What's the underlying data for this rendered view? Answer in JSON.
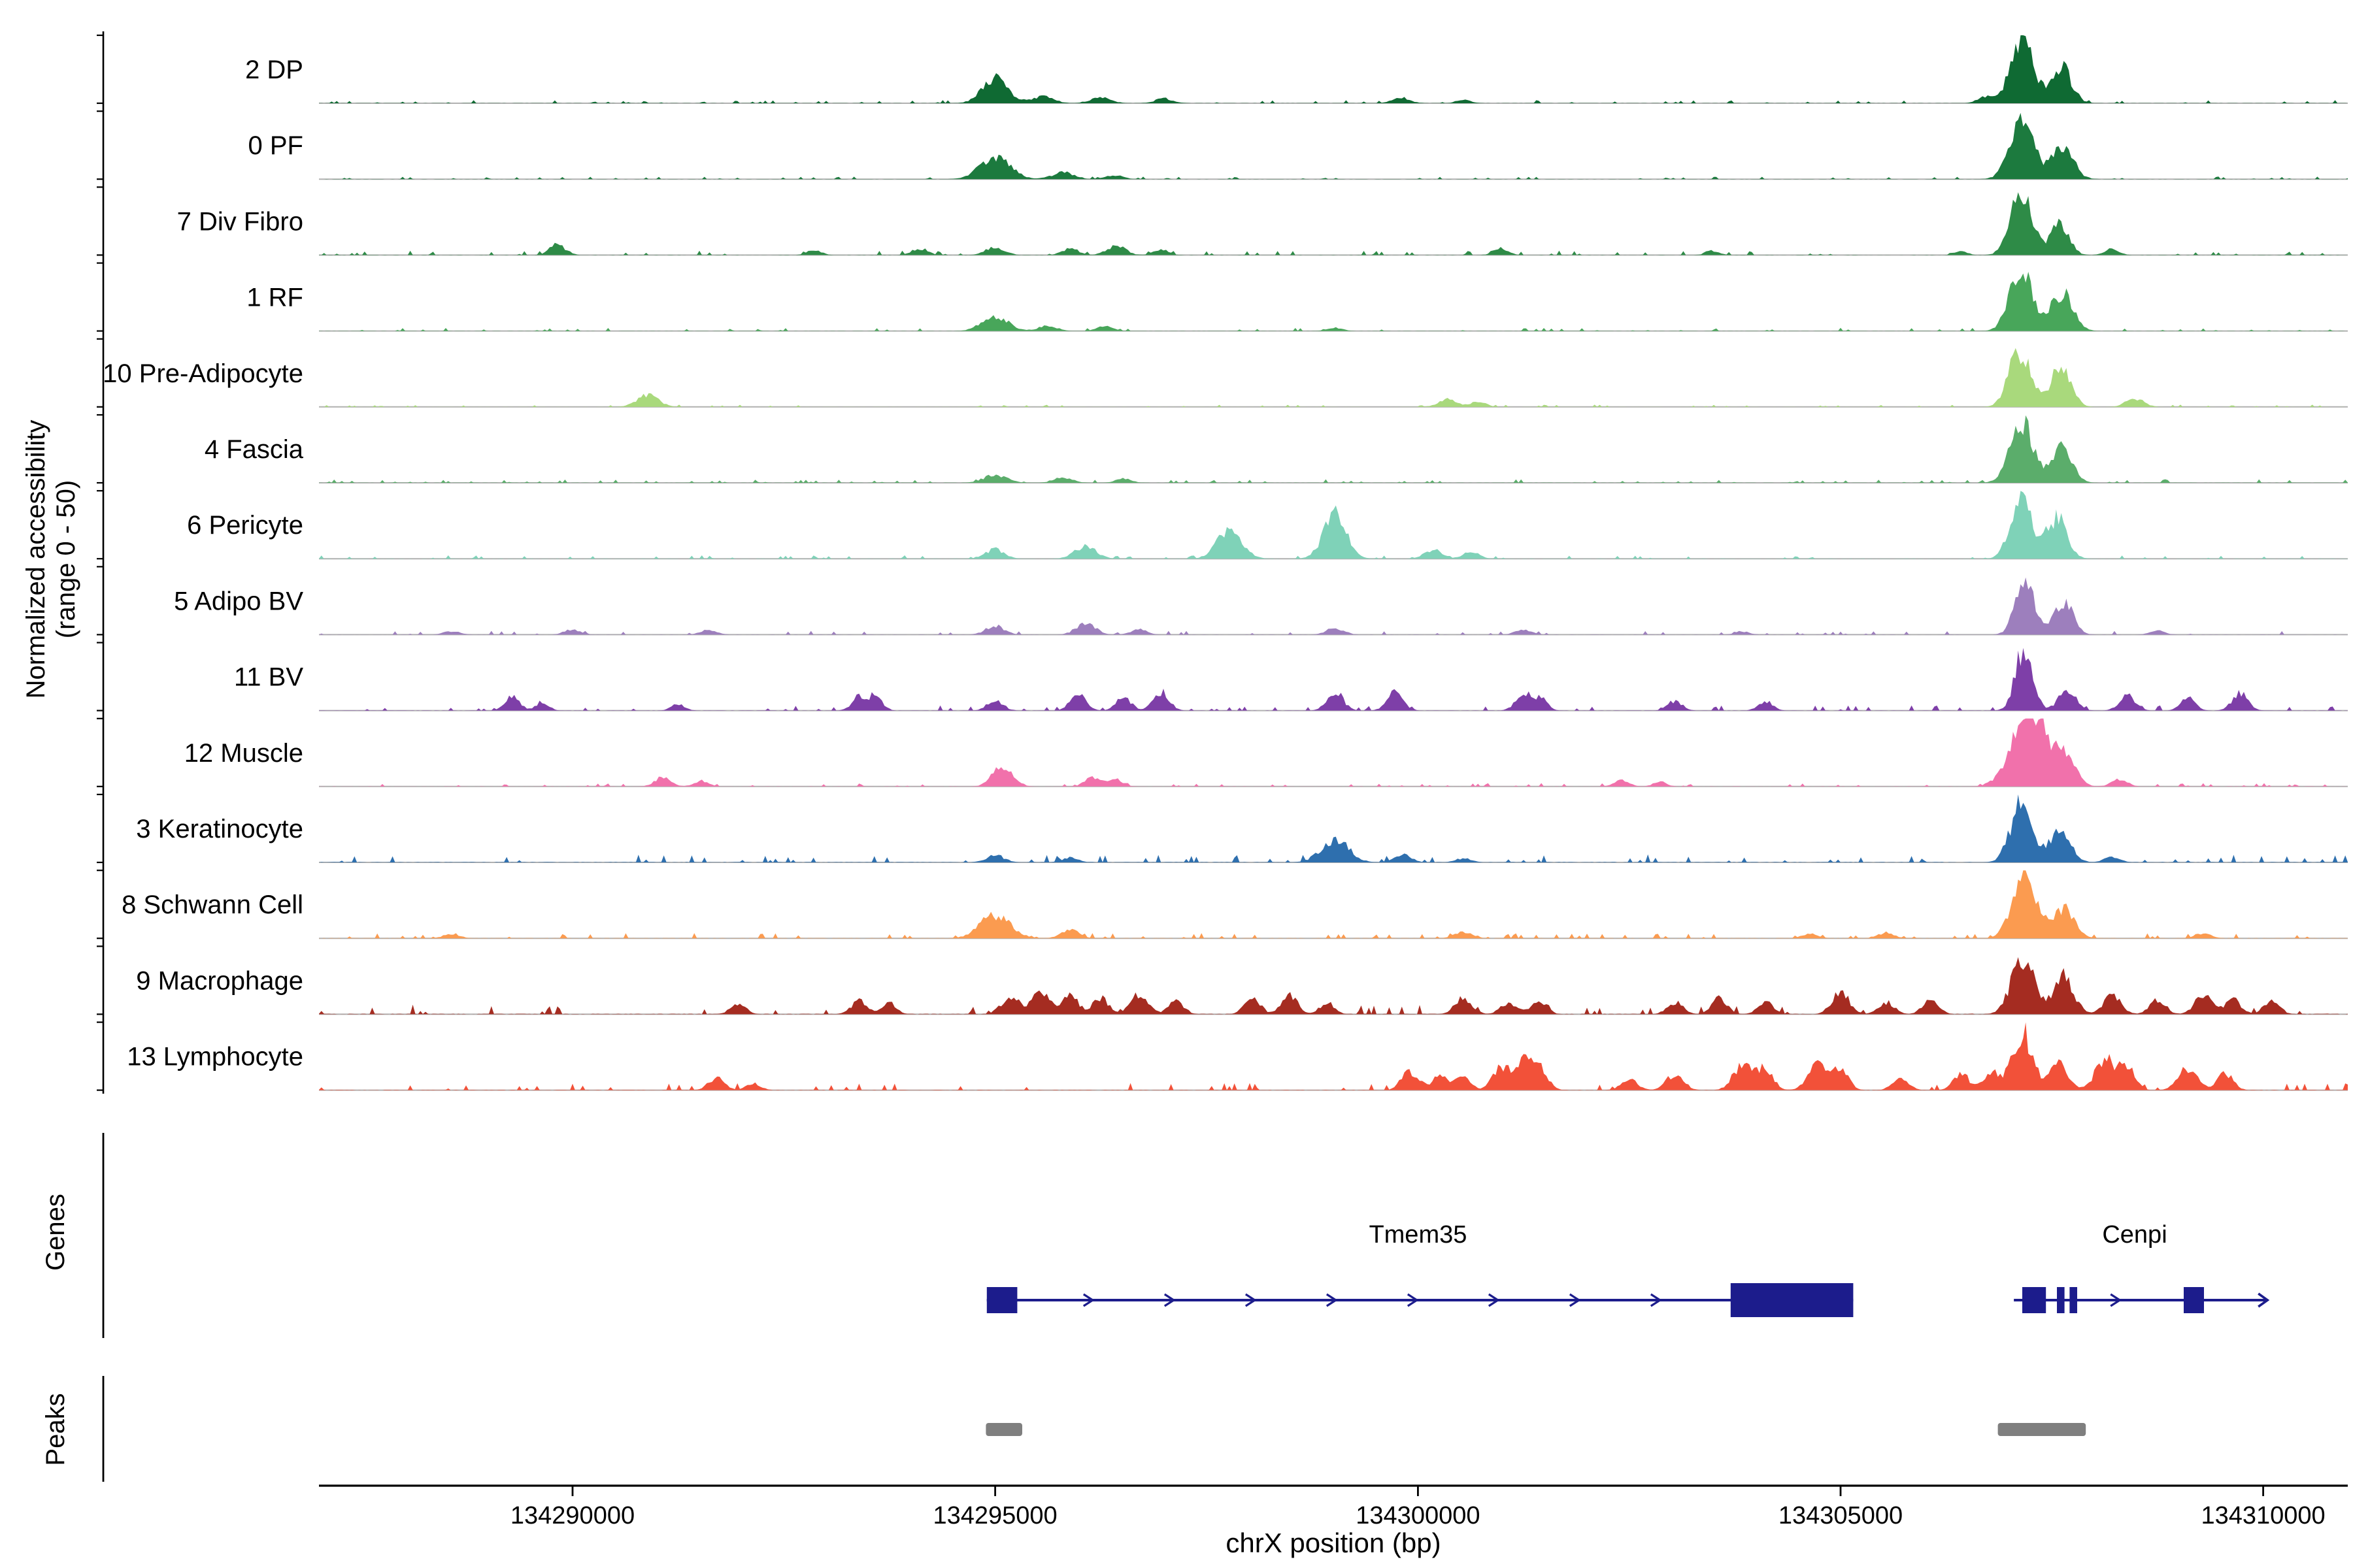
{
  "figure": {
    "labels": {
      "y_axis": "Normalized accessibility\n(range 0 - 50)",
      "genes": "Genes",
      "peaks": "Peaks",
      "x_axis": "chrX position (bp)"
    }
  },
  "chart_data": {
    "type": "area",
    "title": "",
    "x_axis": {
      "label": "chrX position (bp)",
      "chrom": "chrX",
      "start": 134287000,
      "end": 134311000,
      "ticks": [
        {
          "bp": 134290000,
          "label": "134290000"
        },
        {
          "bp": 134295000,
          "label": "134295000"
        },
        {
          "bp": 134300000,
          "label": "134300000"
        },
        {
          "bp": 134305000,
          "label": "134305000"
        },
        {
          "bp": 134310000,
          "label": "134310000"
        }
      ]
    },
    "y_axis": {
      "label": "Normalized accessibility",
      "range_note": "(range 0 - 50)",
      "per_track_range": [
        0,
        50
      ]
    },
    "tracks": [
      {
        "label": "2 DP",
        "color": "#0f6a33",
        "noise": 0.7,
        "peaks": [
          [
            134295000,
            0.38,
            350
          ],
          [
            134295560,
            0.1,
            300
          ],
          [
            134296250,
            0.08,
            280
          ],
          [
            134297000,
            0.07,
            250
          ],
          [
            134299800,
            0.08,
            250
          ],
          [
            134300540,
            0.05,
            200
          ],
          [
            134306700,
            0.1,
            200
          ],
          [
            134307140,
            0.93,
            320
          ],
          [
            134307610,
            0.55,
            280
          ]
        ]
      },
      {
        "label": "0 PF",
        "color": "#1c7a3e",
        "noise": 0.6,
        "peaks": [
          [
            134295000,
            0.32,
            420
          ],
          [
            134295800,
            0.1,
            300
          ],
          [
            134296400,
            0.06,
            250
          ],
          [
            134307140,
            0.9,
            320
          ],
          [
            134307620,
            0.5,
            300
          ]
        ]
      },
      {
        "label": "7 Div Fibro",
        "color": "#2e8b47",
        "noise": 1.0,
        "peaks": [
          [
            134289820,
            0.16,
            220
          ],
          [
            134292860,
            0.07,
            200
          ],
          [
            134294110,
            0.1,
            220
          ],
          [
            134295000,
            0.12,
            260
          ],
          [
            134295890,
            0.1,
            220
          ],
          [
            134296430,
            0.14,
            260
          ],
          [
            134296960,
            0.08,
            200
          ],
          [
            134300980,
            0.1,
            200
          ],
          [
            134303480,
            0.07,
            180
          ],
          [
            134306430,
            0.06,
            160
          ],
          [
            134307140,
            0.9,
            300
          ],
          [
            134307590,
            0.45,
            260
          ],
          [
            134308210,
            0.1,
            200
          ]
        ]
      },
      {
        "label": "1 RF",
        "color": "#48a65a",
        "noise": 0.7,
        "peaks": [
          [
            134295000,
            0.22,
            360
          ],
          [
            134295620,
            0.08,
            250
          ],
          [
            134296300,
            0.07,
            220
          ],
          [
            134299020,
            0.05,
            200
          ],
          [
            134307140,
            0.9,
            320
          ],
          [
            134307620,
            0.55,
            300
          ]
        ]
      },
      {
        "label": "10 Pre-Adipocyte",
        "color": "#a9d97c",
        "noise": 0.5,
        "peaks": [
          [
            134290890,
            0.17,
            300
          ],
          [
            134300360,
            0.12,
            260
          ],
          [
            134300720,
            0.08,
            200
          ],
          [
            134307120,
            0.84,
            300
          ],
          [
            134307600,
            0.6,
            280
          ],
          [
            134308480,
            0.13,
            240
          ]
        ]
      },
      {
        "label": "4 Fascia",
        "color": "#5bad6b",
        "noise": 0.8,
        "peaks": [
          [
            134295000,
            0.12,
            320
          ],
          [
            134295800,
            0.08,
            260
          ],
          [
            134296520,
            0.06,
            220
          ],
          [
            134307140,
            0.9,
            320
          ],
          [
            134307620,
            0.55,
            280
          ]
        ]
      },
      {
        "label": "6 Pericyte",
        "color": "#7fd2b8",
        "noise": 0.8,
        "peaks": [
          [
            134295000,
            0.14,
            260
          ],
          [
            134296070,
            0.18,
            300
          ],
          [
            134297770,
            0.45,
            340
          ],
          [
            134299020,
            0.65,
            320
          ],
          [
            134300180,
            0.14,
            240
          ],
          [
            134300630,
            0.1,
            220
          ],
          [
            134307140,
            0.88,
            300
          ],
          [
            134307560,
            0.6,
            280
          ]
        ]
      },
      {
        "label": "5 Adipo BV",
        "color": "#9d7fbd",
        "noise": 0.9,
        "peaks": [
          [
            134288570,
            0.05,
            220
          ],
          [
            134290000,
            0.08,
            220
          ],
          [
            134291610,
            0.07,
            220
          ],
          [
            134295000,
            0.13,
            260
          ],
          [
            134296070,
            0.18,
            260
          ],
          [
            134296700,
            0.08,
            220
          ],
          [
            134299020,
            0.1,
            240
          ],
          [
            134301250,
            0.08,
            220
          ],
          [
            134303840,
            0.05,
            200
          ],
          [
            134307180,
            0.84,
            260
          ],
          [
            134307640,
            0.5,
            260
          ],
          [
            134308750,
            0.06,
            200
          ]
        ]
      },
      {
        "label": "11 BV",
        "color": "#7e3fa8",
        "noise": 1.2,
        "peaks": [
          [
            134289290,
            0.2,
            200
          ],
          [
            134289640,
            0.13,
            180
          ],
          [
            134291250,
            0.1,
            180
          ],
          [
            134293390,
            0.2,
            200
          ],
          [
            134293590,
            0.22,
            180
          ],
          [
            134295000,
            0.15,
            220
          ],
          [
            134295980,
            0.25,
            220
          ],
          [
            134296520,
            0.2,
            200
          ],
          [
            134296960,
            0.28,
            220
          ],
          [
            134299020,
            0.28,
            220
          ],
          [
            134299730,
            0.28,
            220
          ],
          [
            134301250,
            0.24,
            220
          ],
          [
            134301450,
            0.18,
            180
          ],
          [
            134303040,
            0.14,
            200
          ],
          [
            134304110,
            0.14,
            200
          ],
          [
            134307170,
            0.95,
            240
          ],
          [
            134307680,
            0.3,
            240
          ],
          [
            134308390,
            0.22,
            220
          ],
          [
            134309110,
            0.18,
            200
          ],
          [
            134309730,
            0.26,
            220
          ]
        ]
      },
      {
        "label": "12 Muscle",
        "color": "#f171ab",
        "noise": 0.8,
        "peaks": [
          [
            134291070,
            0.14,
            220
          ],
          [
            134291520,
            0.09,
            200
          ],
          [
            134295090,
            0.3,
            280
          ],
          [
            134296160,
            0.14,
            220
          ],
          [
            134296430,
            0.1,
            200
          ],
          [
            134302410,
            0.09,
            200
          ],
          [
            134302860,
            0.07,
            180
          ],
          [
            134307160,
            0.78,
            420
          ],
          [
            134307320,
            0.82,
            260
          ],
          [
            134307640,
            0.5,
            300
          ],
          [
            134308300,
            0.1,
            220
          ]
        ]
      },
      {
        "label": "3 Keratinocyte",
        "color": "#2e6fae",
        "noise": 1.8,
        "peaks": [
          [
            134295000,
            0.1,
            260
          ],
          [
            134295890,
            0.07,
            220
          ],
          [
            134299020,
            0.35,
            380
          ],
          [
            134299820,
            0.12,
            240
          ],
          [
            134300540,
            0.06,
            220
          ],
          [
            134307140,
            0.88,
            300
          ],
          [
            134307600,
            0.5,
            280
          ],
          [
            134308210,
            0.08,
            220
          ]
        ]
      },
      {
        "label": "8 Schwann Cell",
        "color": "#fb9b50",
        "noise": 1.2,
        "peaks": [
          [
            134288570,
            0.07,
            220
          ],
          [
            134295000,
            0.35,
            420
          ],
          [
            134295890,
            0.12,
            260
          ],
          [
            134300540,
            0.1,
            240
          ],
          [
            134304640,
            0.07,
            220
          ],
          [
            134305540,
            0.09,
            220
          ],
          [
            134307180,
            0.93,
            340
          ],
          [
            134307650,
            0.45,
            280
          ],
          [
            134309290,
            0.07,
            220
          ]
        ]
      },
      {
        "label": "9 Macrophage",
        "color": "#a52c21",
        "noise": 2.2,
        "peaks": [
          [
            134291960,
            0.14,
            220
          ],
          [
            134293390,
            0.2,
            220
          ],
          [
            134293750,
            0.16,
            200
          ],
          [
            134295180,
            0.28,
            240
          ],
          [
            134295540,
            0.33,
            240
          ],
          [
            134295890,
            0.28,
            220
          ],
          [
            134296250,
            0.24,
            220
          ],
          [
            134296700,
            0.3,
            240
          ],
          [
            134297140,
            0.18,
            220
          ],
          [
            134298040,
            0.24,
            220
          ],
          [
            134298480,
            0.28,
            220
          ],
          [
            134298930,
            0.18,
            200
          ],
          [
            134300540,
            0.24,
            240
          ],
          [
            134301070,
            0.18,
            220
          ],
          [
            134301430,
            0.2,
            220
          ],
          [
            134303040,
            0.18,
            220
          ],
          [
            134303570,
            0.24,
            220
          ],
          [
            134304110,
            0.18,
            220
          ],
          [
            134305000,
            0.33,
            240
          ],
          [
            134305540,
            0.18,
            220
          ],
          [
            134306070,
            0.22,
            220
          ],
          [
            134307160,
            0.84,
            320
          ],
          [
            134307640,
            0.55,
            280
          ],
          [
            134308210,
            0.28,
            240
          ],
          [
            134308750,
            0.22,
            220
          ],
          [
            134309290,
            0.28,
            240
          ],
          [
            134309640,
            0.22,
            220
          ],
          [
            134310100,
            0.2,
            220
          ]
        ]
      },
      {
        "label": "13 Lymphocyte",
        "color": "#f25139",
        "noise": 1.6,
        "peaks": [
          [
            134291700,
            0.18,
            220
          ],
          [
            134292140,
            0.1,
            200
          ],
          [
            134299910,
            0.28,
            240
          ],
          [
            134300270,
            0.22,
            220
          ],
          [
            134300540,
            0.18,
            200
          ],
          [
            134300980,
            0.33,
            240
          ],
          [
            134301250,
            0.42,
            240
          ],
          [
            134301450,
            0.28,
            220
          ],
          [
            134302500,
            0.18,
            220
          ],
          [
            134303040,
            0.24,
            240
          ],
          [
            134303840,
            0.38,
            260
          ],
          [
            134304110,
            0.32,
            220
          ],
          [
            134304730,
            0.42,
            260
          ],
          [
            134305000,
            0.28,
            220
          ],
          [
            134305710,
            0.18,
            220
          ],
          [
            134306430,
            0.24,
            220
          ],
          [
            134306790,
            0.28,
            220
          ],
          [
            134307150,
            0.86,
            280
          ],
          [
            134307590,
            0.38,
            260
          ],
          [
            134308130,
            0.48,
            260
          ],
          [
            134308390,
            0.33,
            220
          ],
          [
            134309110,
            0.33,
            260
          ],
          [
            134309550,
            0.24,
            220
          ]
        ]
      }
    ],
    "gene_color": "#1c1c8c",
    "genes": [
      {
        "name": "Tmem35",
        "strand": "+",
        "start": 134294900,
        "end": 134305150,
        "label_bp": 134300000,
        "end_arrow": false,
        "exons": [
          [
            134294900,
            134295260
          ],
          [
            134303700,
            134305150
          ]
        ]
      },
      {
        "name": "Cenpi",
        "strand": "+",
        "start": 134307050,
        "end": 134310050,
        "label_bp": 134308480,
        "end_arrow": true,
        "exons": [
          [
            134307150,
            134307430
          ],
          [
            134307560,
            134307650
          ],
          [
            134307710,
            134307800
          ],
          [
            134309060,
            134309300
          ]
        ]
      }
    ],
    "peak_color": "#7f7f7f",
    "peak_regions": [
      [
        134294890,
        134295320
      ],
      [
        134306860,
        134307900
      ]
    ]
  }
}
